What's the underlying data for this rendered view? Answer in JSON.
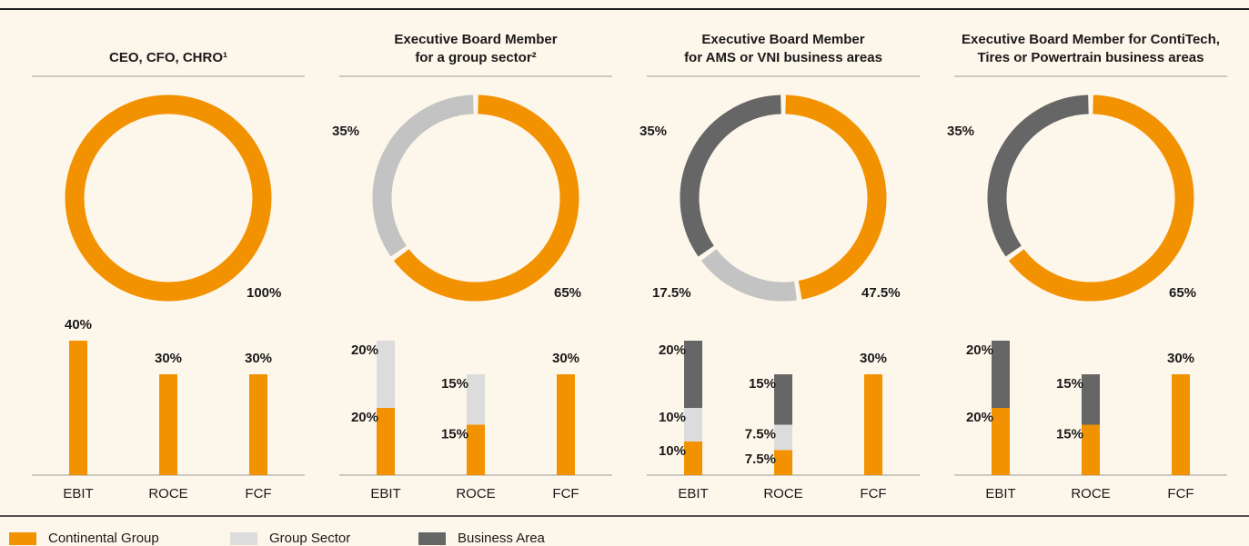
{
  "chart_data": [
    {
      "type": "pie",
      "title": [
        "CEO, CFO, CHRO¹"
      ],
      "values": [
        100
      ],
      "value_labels": [
        "100%"
      ],
      "colors": [
        "#f39200"
      ]
    },
    {
      "type": "bar",
      "categories": [
        "EBIT",
        "ROCE",
        "FCF"
      ],
      "ylim": [
        0,
        40
      ],
      "series": [
        {
          "color": "#f39200",
          "values": [
            40,
            30,
            30
          ],
          "value_labels": [
            "40%",
            "30%",
            "30%"
          ]
        }
      ]
    },
    {
      "type": "pie",
      "title": [
        "Executive Board Member",
        "for a group sector²"
      ],
      "values": [
        65,
        35
      ],
      "value_labels": [
        "65%",
        "35%"
      ],
      "colors": [
        "#f39200",
        "#c3c3c3"
      ]
    },
    {
      "type": "bar",
      "categories": [
        "EBIT",
        "ROCE",
        "FCF"
      ],
      "ylim": [
        0,
        40
      ],
      "series": [
        {
          "color": "#f39200",
          "values": [
            20,
            15,
            30
          ],
          "value_labels": [
            "20%",
            "15%",
            "30%"
          ]
        },
        {
          "color": "#dcdcdc",
          "values": [
            20,
            15,
            null
          ],
          "value_labels": [
            "20%",
            "15%",
            null
          ]
        }
      ]
    },
    {
      "type": "pie",
      "title": [
        "Executive Board Member",
        "for AMS or VNI business areas"
      ],
      "values": [
        47.5,
        17.5,
        35
      ],
      "value_labels": [
        "47.5%",
        "17.5%",
        "35%"
      ],
      "colors": [
        "#f39200",
        "#c3c3c3",
        "#666666"
      ]
    },
    {
      "type": "bar",
      "categories": [
        "EBIT",
        "ROCE",
        "FCF"
      ],
      "ylim": [
        0,
        40
      ],
      "series": [
        {
          "name": "Continental Group",
          "color": "#f39200",
          "values": [
            10,
            7.5,
            30
          ],
          "value_labels": [
            "10%",
            "7.5%",
            "30%"
          ]
        },
        {
          "name": "Group Sector",
          "color": "#dcdcdc",
          "values": [
            10,
            7.5,
            null
          ],
          "value_labels": [
            "10%",
            "7.5%",
            null
          ]
        },
        {
          "name": "Business Area",
          "color": "#666666",
          "values": [
            20,
            15,
            null
          ],
          "value_labels": [
            "20%",
            "15%",
            null
          ]
        }
      ]
    },
    {
      "type": "pie",
      "title": [
        "Executive Board Member for ContiTech,",
        "Tires or Powertrain business areas"
      ],
      "values": [
        65,
        35
      ],
      "value_labels": [
        "65%",
        "35%"
      ],
      "colors": [
        "#f39200",
        "#666666"
      ]
    },
    {
      "type": "bar",
      "categories": [
        "EBIT",
        "ROCE",
        "FCF"
      ],
      "ylim": [
        0,
        40
      ],
      "series": [
        {
          "color": "#f39200",
          "values": [
            20,
            15,
            30
          ],
          "value_labels": [
            "20%",
            "15%",
            "30%"
          ]
        },
        {
          "color": "#666666",
          "values": [
            20,
            15,
            null
          ],
          "value_labels": [
            "20%",
            "15%",
            null
          ]
        }
      ]
    }
  ]
}
